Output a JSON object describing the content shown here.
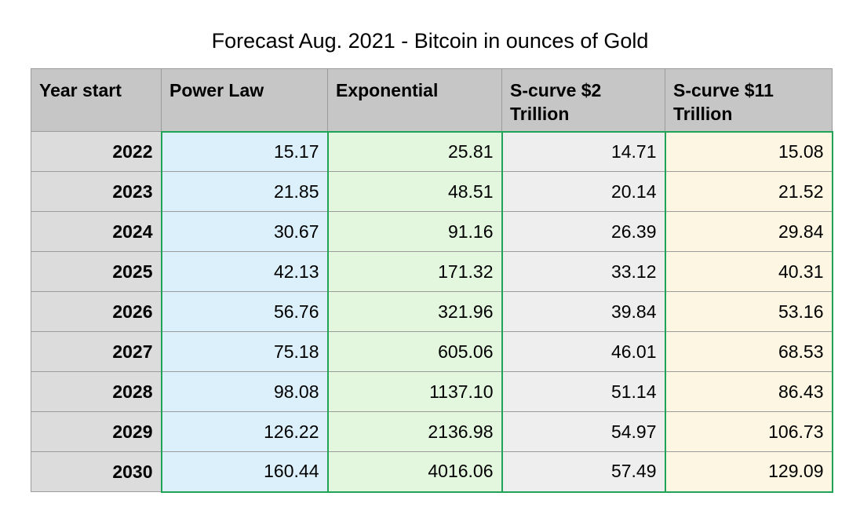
{
  "title": "Forecast Aug. 2021 - Bitcoin in ounces of Gold",
  "chart_data": {
    "type": "table",
    "title": "Forecast Aug. 2021 - Bitcoin in ounces of Gold",
    "columns": [
      "Year start",
      "Power Law",
      "Exponential",
      "S-curve $2 Trillion",
      "S-curve $11 Trillion"
    ],
    "rows": [
      [
        "2022",
        "15.17",
        "25.81",
        "14.71",
        "15.08"
      ],
      [
        "2023",
        "21.85",
        "48.51",
        "20.14",
        "21.52"
      ],
      [
        "2024",
        "30.67",
        "91.16",
        "26.39",
        "29.84"
      ],
      [
        "2025",
        "42.13",
        "171.32",
        "33.12",
        "40.31"
      ],
      [
        "2026",
        "56.76",
        "321.96",
        "39.84",
        "53.16"
      ],
      [
        "2027",
        "75.18",
        "605.06",
        "46.01",
        "68.53"
      ],
      [
        "2028",
        "98.08",
        "1137.10",
        "51.14",
        "86.43"
      ],
      [
        "2029",
        "126.22",
        "2136.98",
        "54.97",
        "106.73"
      ],
      [
        "2030",
        "160.44",
        "4016.06",
        "57.49",
        "129.09"
      ]
    ],
    "colors": {
      "header_bg": "#c6c6c6",
      "year_bg": "#dcdcdc",
      "power_law_bg": "#dcf0fb",
      "exponential_bg": "#e3f7df",
      "scurve2_bg": "#eeeeee",
      "scurve11_bg": "#fdf6e2",
      "value_border": "#21a357"
    }
  }
}
